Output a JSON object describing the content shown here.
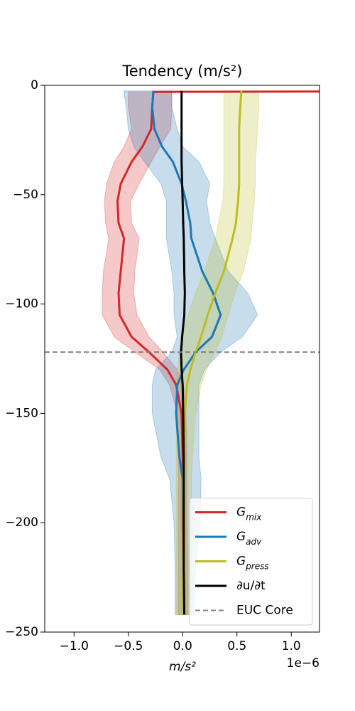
{
  "chart_data": {
    "type": "profile",
    "title": "Tendency (m/s²)",
    "xlabel": "m/s²",
    "x_offset_label": "1e−6",
    "depth": [
      -2.5,
      -3,
      -10,
      -20,
      -28,
      -35,
      -45,
      -53,
      -63,
      -70,
      -85,
      -95,
      -105,
      -115,
      -122,
      -130,
      -137,
      -150,
      -170,
      -180,
      -200,
      -220,
      -242
    ],
    "series": [
      {
        "name": "G_mix",
        "color": "#d62728",
        "values": [
          5.0,
          -0.27,
          -0.28,
          -0.29,
          -0.37,
          -0.47,
          -0.57,
          -0.6,
          -0.59,
          -0.54,
          -0.57,
          -0.59,
          -0.58,
          -0.47,
          -0.31,
          -0.14,
          -0.06,
          -0.01,
          0.0,
          0.0,
          0.0,
          0.005,
          0.005
        ],
        "lower": [
          null,
          -0.5,
          -0.5,
          -0.47,
          -0.54,
          -0.63,
          -0.7,
          -0.72,
          -0.71,
          -0.68,
          -0.73,
          -0.74,
          -0.74,
          -0.63,
          -0.44,
          -0.21,
          -0.12,
          -0.05,
          -0.04,
          -0.04,
          -0.04,
          -0.04,
          -0.04
        ],
        "upper": [
          null,
          -0.1,
          -0.1,
          -0.11,
          -0.21,
          -0.29,
          -0.4,
          -0.48,
          -0.47,
          -0.4,
          -0.44,
          -0.45,
          -0.42,
          -0.31,
          -0.18,
          -0.05,
          0.01,
          0.03,
          0.04,
          0.04,
          0.04,
          0.05,
          0.05
        ]
      },
      {
        "name": "G_adv",
        "color": "#1f77b4",
        "values": [
          -0.27,
          -0.27,
          -0.28,
          -0.26,
          -0.19,
          -0.09,
          -0.01,
          0.03,
          0.07,
          0.08,
          0.18,
          0.28,
          0.35,
          0.27,
          0.12,
          0.01,
          -0.05,
          -0.06,
          -0.03,
          0.0,
          0.005,
          0.005,
          0.005
        ],
        "lower": [
          -0.54,
          -0.54,
          -0.52,
          -0.5,
          -0.45,
          -0.35,
          -0.2,
          -0.15,
          -0.15,
          -0.15,
          -0.1,
          -0.08,
          -0.08,
          -0.05,
          -0.1,
          -0.25,
          -0.28,
          -0.28,
          -0.2,
          -0.12,
          -0.08,
          -0.07,
          -0.07
        ],
        "upper": [
          -0.1,
          -0.1,
          -0.1,
          -0.05,
          0.0,
          0.15,
          0.25,
          0.22,
          0.25,
          0.3,
          0.42,
          0.6,
          0.69,
          0.55,
          0.35,
          0.2,
          0.15,
          0.15,
          0.15,
          0.17,
          0.16,
          0.12,
          0.1
        ]
      },
      {
        "name": "G_press",
        "color": "#bcbd22",
        "values": [
          0.54,
          0.54,
          0.53,
          0.52,
          0.52,
          0.52,
          0.52,
          0.51,
          0.49,
          0.46,
          0.38,
          0.3,
          0.23,
          0.17,
          0.12,
          0.07,
          0.04,
          0.02,
          0.01,
          0.005,
          0.005,
          0.005,
          0.005
        ],
        "lower": [
          0.38,
          0.38,
          0.38,
          0.38,
          0.38,
          0.38,
          0.38,
          0.37,
          0.33,
          0.3,
          0.2,
          0.12,
          0.05,
          0.0,
          -0.03,
          -0.05,
          -0.06,
          -0.06,
          -0.06,
          -0.06,
          -0.06,
          -0.06,
          -0.06
        ],
        "upper": [
          0.7,
          0.7,
          0.7,
          0.69,
          0.68,
          0.67,
          0.67,
          0.66,
          0.64,
          0.63,
          0.56,
          0.48,
          0.42,
          0.36,
          0.3,
          0.22,
          0.17,
          0.12,
          0.09,
          0.08,
          0.08,
          0.08,
          0.08
        ]
      },
      {
        "name": "∂u/∂t",
        "color": "#000000",
        "values": [
          -0.01,
          -0.01,
          -0.01,
          -0.01,
          -0.01,
          -0.01,
          -0.005,
          0.0,
          0.005,
          0.01,
          0.015,
          0.02,
          0.015,
          -0.005,
          -0.015,
          -0.01,
          0.0,
          0.005,
          0.01,
          0.01,
          0.01,
          0.01,
          0.015
        ]
      }
    ],
    "hline": {
      "name": "EUC Core",
      "value": -122,
      "color": "#808080"
    },
    "xlim": [
      -1.27,
      1.26
    ],
    "ylim": [
      -250,
      0
    ],
    "xticks": [
      {
        "value": -1,
        "label": "−1.0"
      },
      {
        "value": -0.5,
        "label": "−0.5"
      },
      {
        "value": 0,
        "label": "0.0"
      },
      {
        "value": 0.5,
        "label": "0.5"
      },
      {
        "value": 1,
        "label": "1.0"
      }
    ],
    "yticks": [
      0,
      {
        "value": -50,
        "label": "−50"
      },
      {
        "value": -100,
        "label": "−100"
      },
      {
        "value": -150,
        "label": "−150"
      },
      {
        "value": -200,
        "label": "−200"
      },
      {
        "value": -250,
        "label": "−250"
      }
    ],
    "legend": "lower right"
  }
}
